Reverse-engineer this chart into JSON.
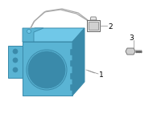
{
  "bg_color": "#ffffff",
  "unit_color": "#5ab4d4",
  "unit_stroke": "#3a8aaa",
  "unit_dark": "#3a8aaa",
  "unit_light": "#70c8e8",
  "connector_color": "#e8e8e8",
  "connector_stroke": "#666666",
  "bolt_color": "#d0d0d0",
  "bolt_stroke": "#666666",
  "label1": "1",
  "label2": "2",
  "label3": "3",
  "label_fontsize": 6.5,
  "line_color": "#888888",
  "wire_color": "#aaaaaa"
}
